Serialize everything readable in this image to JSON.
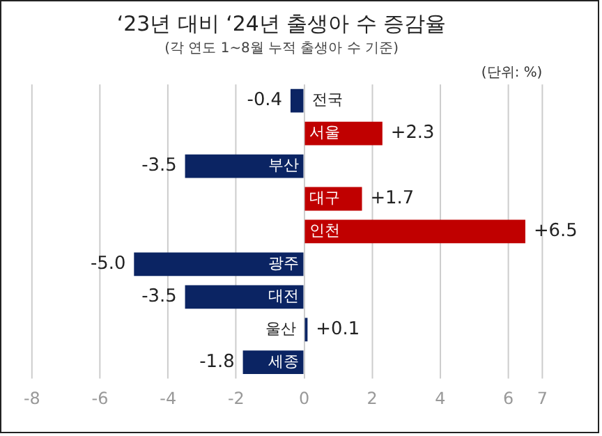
{
  "chart_data": {
    "type": "bar",
    "orientation": "horizontal",
    "title": "‘23년 대비 ‘24년 출생아 수 증감율",
    "subtitle": "(각 연도 1~8월 누적 출생아 수 기준)",
    "annotations": [
      "(단위: %)"
    ],
    "categories": [
      "전국",
      "서울",
      "부산",
      "대구",
      "인천",
      "광주",
      "대전",
      "울산",
      "세종"
    ],
    "values": [
      -0.4,
      2.3,
      -3.5,
      1.7,
      6.5,
      -5.0,
      -3.5,
      0.1,
      -1.8
    ],
    "colors": [
      "#0b2463",
      "#c00000",
      "#0b2463",
      "#c00000",
      "#c00000",
      "#0b2463",
      "#0b2463",
      "#0b2463",
      "#0b2463"
    ],
    "value_labels": [
      "-0.4",
      "+2.3",
      "-3.5",
      "+1.7",
      "+6.5",
      "-5.0",
      "-3.5",
      "+0.1",
      "-1.8"
    ],
    "xlim": [
      -8,
      7
    ],
    "xticks": [
      -8,
      -6,
      -4,
      -2,
      0,
      2,
      4,
      6,
      7
    ],
    "grid": "x",
    "legend": false
  }
}
